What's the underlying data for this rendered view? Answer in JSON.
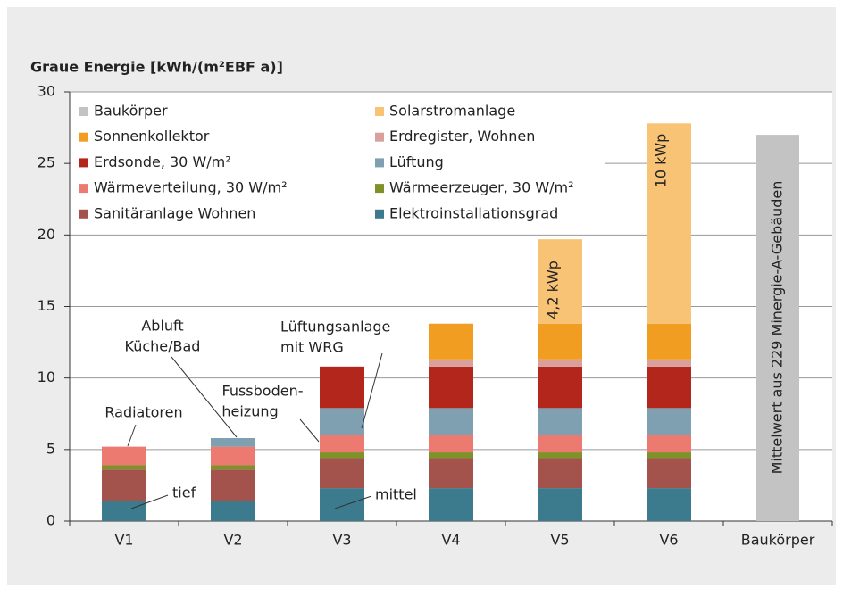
{
  "chart_data": {
    "type": "stacked-bar",
    "title": "Graue Energie [kWh/(m²EBF a)]",
    "categories": [
      "V1",
      "V2",
      "V3",
      "V4",
      "V5",
      "V6",
      "Baukörper"
    ],
    "ylim": [
      0,
      30
    ],
    "yticks": [
      0,
      5,
      10,
      15,
      20,
      25,
      30
    ],
    "grid": true,
    "series": [
      {
        "name": "Baukörper",
        "color": "#c3c3c3",
        "values": [
          null,
          null,
          null,
          null,
          null,
          null,
          27.0
        ]
      },
      {
        "name": "Solarstromanlage",
        "color": "#f8c375",
        "values": [
          null,
          null,
          null,
          null,
          5.9,
          14.0,
          null
        ]
      },
      {
        "name": "Sonnenkollektor",
        "color": "#f19d22",
        "values": [
          null,
          null,
          null,
          2.5,
          2.5,
          2.5,
          null
        ]
      },
      {
        "name": "Erdregister, Wohnen",
        "color": "#d9a09c",
        "values": [
          null,
          null,
          null,
          0.5,
          0.5,
          0.5,
          null
        ]
      },
      {
        "name": "Erdsonde, 30 W/m²",
        "color": "#b3261c",
        "values": [
          null,
          null,
          2.9,
          2.9,
          2.9,
          2.9,
          null
        ]
      },
      {
        "name": "Lüftung",
        "color": "#7ea0b0",
        "values": [
          null,
          0.6,
          1.9,
          1.9,
          1.9,
          1.9,
          null
        ]
      },
      {
        "name": "Wärmeverteilung, 30 W/m²",
        "color": "#ec7a70",
        "values": [
          1.3,
          1.3,
          1.2,
          1.2,
          1.2,
          1.2,
          null
        ]
      },
      {
        "name": "Wärmeerzeuger, 30 W/m²",
        "color": "#7f9129",
        "values": [
          0.3,
          0.3,
          0.4,
          0.4,
          0.4,
          0.4,
          null
        ]
      },
      {
        "name": "Sanitäranlage Wohnen",
        "color": "#a3534b",
        "values": [
          2.2,
          2.2,
          2.1,
          2.1,
          2.1,
          2.1,
          null
        ]
      },
      {
        "name": "Elektroinstallationsgrad",
        "color": "#3c7b8d",
        "values": [
          1.4,
          1.4,
          2.3,
          2.3,
          2.3,
          2.3,
          null
        ]
      }
    ],
    "annotations": [
      "Radiatoren",
      "Abluft",
      "Küche/Bad",
      "Fussboden-",
      "heizung",
      "Lüftungsanlage",
      "mit WRG",
      "tief",
      "mittel",
      "4,2 kWp",
      "10 kWp",
      "Mittelwert aus 229 Minergie-A-Gebäuden"
    ]
  }
}
